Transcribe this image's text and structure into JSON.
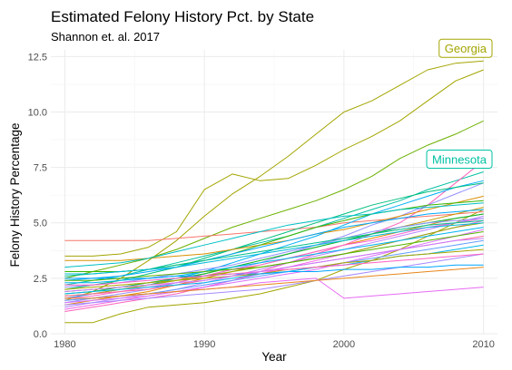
{
  "chart_data": {
    "type": "line",
    "title": "Estimated Felony History Pct. by State",
    "subtitle": "Shannon et. al. 2017",
    "xlabel": "Year",
    "ylabel": "Felony History Percentage",
    "xlim": [
      1979,
      2011
    ],
    "ylim": [
      0,
      12.8
    ],
    "x_ticks": [
      1980,
      1990,
      2000,
      2010
    ],
    "x_tick_labels": [
      "1980",
      "1990",
      "2000",
      "2010"
    ],
    "y_ticks": [
      0,
      2.5,
      5,
      7.5,
      10,
      12.5
    ],
    "y_tick_labels": [
      "0.0",
      "2.5",
      "5.0",
      "7.5",
      "10.0",
      "12.5"
    ],
    "grid": true,
    "legend": "none",
    "x": [
      1980,
      1982,
      1984,
      1986,
      1988,
      1990,
      1992,
      1994,
      1996,
      1998,
      2000,
      2002,
      2004,
      2006,
      2008,
      2010
    ],
    "series": [
      {
        "name": "Georgia",
        "color": "#A3A500",
        "values": [
          0.5,
          0.5,
          0.9,
          1.2,
          1.3,
          1.4,
          1.6,
          1.8,
          2.1,
          2.4,
          2.9,
          3.3,
          3.8,
          4.4,
          5.0,
          5.6
        ]
      },
      {
        "name": "Georgia",
        "color": "#A3A500",
        "values": [
          1.5,
          1.9,
          2.5,
          3.3,
          4.2,
          5.3,
          6.3,
          7.1,
          8.0,
          9.0,
          10.0,
          10.5,
          11.2,
          11.9,
          12.2,
          12.3
        ]
      },
      {
        "name": "",
        "color": "#A3A500",
        "values": [
          3.5,
          3.5,
          3.6,
          3.9,
          4.6,
          6.5,
          7.2,
          6.9,
          7.0,
          7.6,
          8.3,
          8.9,
          9.6,
          10.5,
          11.4,
          11.9
        ]
      },
      {
        "name": "",
        "color": "#6BB100",
        "values": [
          2.5,
          2.8,
          3.1,
          3.4,
          3.8,
          4.3,
          4.8,
          5.2,
          5.6,
          6.0,
          6.5,
          7.1,
          7.9,
          8.5,
          9.0,
          9.6
        ]
      },
      {
        "name": "Minnesota",
        "color": "#00C1A3",
        "values": [
          2.2,
          2.4,
          2.6,
          2.9,
          3.2,
          3.5,
          3.8,
          4.1,
          4.4,
          4.8,
          5.2,
          5.6,
          6.0,
          6.5,
          6.9,
          7.3
        ]
      },
      {
        "name": "",
        "color": "#F8766D",
        "values": [
          4.2,
          4.2,
          4.2,
          4.2,
          4.3,
          4.4,
          4.5,
          4.6,
          4.7,
          4.8,
          5.0,
          5.1,
          5.2,
          5.3,
          5.4,
          5.5
        ]
      },
      {
        "name": "",
        "color": "#E76BF3",
        "values": [
          1.5,
          1.6,
          1.7,
          1.8,
          1.9,
          2.0,
          2.1,
          2.3,
          2.4,
          2.5,
          1.6,
          1.7,
          1.8,
          1.9,
          2.0,
          2.1
        ]
      },
      {
        "name": "",
        "color": "#FF62BC",
        "values": [
          1.0,
          1.2,
          1.4,
          1.6,
          1.8,
          2.1,
          2.4,
          2.8,
          3.2,
          3.6,
          4.0,
          4.5,
          5.0,
          5.8,
          6.8,
          7.8
        ]
      },
      {
        "name": "",
        "color": "#00B0F6",
        "values": [
          1.6,
          1.8,
          2.0,
          2.2,
          2.5,
          2.8,
          3.2,
          3.6,
          4.0,
          4.4,
          4.9,
          5.4,
          5.8,
          6.2,
          6.6,
          6.9
        ]
      },
      {
        "name": "",
        "color": "#9590FF",
        "values": [
          1.4,
          1.6,
          1.8,
          2.0,
          2.3,
          2.6,
          2.9,
          3.2,
          3.6,
          4.0,
          4.4,
          4.9,
          5.3,
          5.8,
          6.3,
          6.8
        ]
      },
      {
        "name": "",
        "color": "#00BF7D",
        "values": [
          2.0,
          2.2,
          2.4,
          2.7,
          3.0,
          3.4,
          3.8,
          4.2,
          4.6,
          5.0,
          5.4,
          5.8,
          6.1,
          6.4,
          6.6,
          6.8
        ]
      },
      {
        "name": "",
        "color": "#D89000",
        "values": [
          3.3,
          3.3,
          3.3,
          3.4,
          3.5,
          3.6,
          3.8,
          4.0,
          4.2,
          4.5,
          4.7,
          5.0,
          5.3,
          5.6,
          5.9,
          6.2
        ]
      },
      {
        "name": "",
        "color": "#39B600",
        "values": [
          2.8,
          2.8,
          2.8,
          2.9,
          3.1,
          3.3,
          3.6,
          4.0,
          4.4,
          4.8,
          5.1,
          5.4,
          5.6,
          5.8,
          5.9,
          6.0
        ]
      },
      {
        "name": "",
        "color": "#00BFC4",
        "values": [
          3.0,
          3.1,
          3.2,
          3.4,
          3.7,
          4.0,
          4.3,
          4.6,
          4.9,
          5.1,
          5.3,
          5.4,
          5.6,
          5.7,
          5.8,
          5.9
        ]
      },
      {
        "name": "",
        "color": "#C49A00",
        "values": [
          1.7,
          1.8,
          2.0,
          2.2,
          2.4,
          2.7,
          3.0,
          3.3,
          3.6,
          3.9,
          4.2,
          4.5,
          4.8,
          5.1,
          5.4,
          5.7
        ]
      },
      {
        "name": "",
        "color": "#E58700",
        "values": [
          1.3,
          1.5,
          1.7,
          1.9,
          2.2,
          2.5,
          2.8,
          3.1,
          3.4,
          3.7,
          4.0,
          4.3,
          4.6,
          4.9,
          5.2,
          5.4
        ]
      },
      {
        "name": "",
        "color": "#00A9FF",
        "values": [
          2.4,
          2.5,
          2.6,
          2.8,
          3.0,
          3.3,
          3.6,
          3.9,
          4.2,
          4.5,
          4.8,
          5.0,
          5.2,
          5.4,
          5.5,
          5.6
        ]
      },
      {
        "name": "",
        "color": "#FD61D1",
        "values": [
          1.6,
          1.7,
          1.9,
          2.1,
          2.3,
          2.6,
          2.9,
          3.1,
          3.4,
          3.7,
          4.0,
          4.2,
          4.5,
          4.8,
          5.0,
          5.2
        ]
      },
      {
        "name": "",
        "color": "#B983FF",
        "values": [
          1.2,
          1.4,
          1.6,
          1.8,
          2.0,
          2.3,
          2.6,
          2.9,
          3.2,
          3.5,
          3.8,
          4.1,
          4.4,
          4.7,
          5.0,
          5.3
        ]
      },
      {
        "name": "",
        "color": "#00BA38",
        "values": [
          1.8,
          1.9,
          2.1,
          2.3,
          2.5,
          2.7,
          3.0,
          3.3,
          3.6,
          3.9,
          4.2,
          4.5,
          4.8,
          5.0,
          5.2,
          5.4
        ]
      },
      {
        "name": "",
        "color": "#8F91FF",
        "values": [
          2.1,
          2.2,
          2.3,
          2.5,
          2.7,
          2.9,
          3.1,
          3.4,
          3.7,
          4.0,
          4.3,
          4.6,
          4.8,
          5.0,
          5.1,
          5.2
        ]
      },
      {
        "name": "",
        "color": "#F564E3",
        "values": [
          1.1,
          1.3,
          1.5,
          1.7,
          1.9,
          2.1,
          2.4,
          2.7,
          3.0,
          3.3,
          3.6,
          3.9,
          4.2,
          4.5,
          4.8,
          5.1
        ]
      },
      {
        "name": "",
        "color": "#00C08B",
        "values": [
          2.6,
          2.7,
          2.8,
          2.9,
          3.1,
          3.3,
          3.5,
          3.7,
          3.9,
          4.1,
          4.3,
          4.5,
          4.7,
          4.9,
          5.0,
          5.1
        ]
      },
      {
        "name": "",
        "color": "#93AA00",
        "values": [
          1.9,
          2.0,
          2.1,
          2.2,
          2.4,
          2.6,
          2.8,
          3.0,
          3.2,
          3.4,
          3.6,
          3.9,
          4.2,
          4.5,
          4.8,
          5.0
        ]
      },
      {
        "name": "",
        "color": "#DB72FB",
        "values": [
          1.4,
          1.5,
          1.6,
          1.7,
          1.9,
          2.1,
          2.3,
          2.5,
          2.7,
          2.9,
          3.2,
          3.5,
          3.8,
          4.1,
          4.4,
          4.7
        ]
      },
      {
        "name": "",
        "color": "#00B4EF",
        "values": [
          2.3,
          2.3,
          2.4,
          2.5,
          2.6,
          2.8,
          3.0,
          3.2,
          3.4,
          3.6,
          3.8,
          4.0,
          4.2,
          4.4,
          4.6,
          4.8
        ]
      },
      {
        "name": "",
        "color": "#FF6A98",
        "values": [
          1.7,
          1.8,
          1.9,
          2.0,
          2.2,
          2.4,
          2.6,
          2.8,
          3.0,
          3.2,
          3.4,
          3.6,
          3.8,
          4.0,
          4.2,
          4.4
        ]
      },
      {
        "name": "",
        "color": "#619CFF",
        "values": [
          1.5,
          1.6,
          1.7,
          1.8,
          2.0,
          2.2,
          2.4,
          2.6,
          2.8,
          3.0,
          3.2,
          3.4,
          3.6,
          3.8,
          4.0,
          4.2
        ]
      },
      {
        "name": "",
        "color": "#00B6EB",
        "values": [
          1.8,
          1.9,
          2.0,
          2.1,
          2.2,
          2.3,
          2.5,
          2.7,
          2.8,
          3.0,
          3.1,
          3.3,
          3.5,
          3.6,
          3.8,
          4.0
        ]
      },
      {
        "name": "",
        "color": "#ABA300",
        "values": [
          2.0,
          2.1,
          2.2,
          2.3,
          2.4,
          2.5,
          2.6,
          2.7,
          2.9,
          3.0,
          3.2,
          3.3,
          3.5,
          3.6,
          3.7,
          3.8
        ]
      },
      {
        "name": "",
        "color": "#A58AFF",
        "values": [
          1.3,
          1.4,
          1.5,
          1.6,
          1.7,
          1.8,
          1.9,
          2.0,
          2.2,
          2.4,
          2.6,
          2.8,
          3.0,
          3.2,
          3.4,
          3.6
        ]
      },
      {
        "name": "",
        "color": "#00A5FF",
        "values": [
          2.5,
          2.5,
          2.5,
          2.5,
          2.6,
          2.6,
          2.7,
          2.7,
          2.8,
          2.8,
          2.9,
          2.9,
          3.0,
          3.0,
          3.1,
          3.1
        ]
      },
      {
        "name": "",
        "color": "#E7861B",
        "values": [
          1.6,
          1.6,
          1.7,
          1.8,
          1.9,
          2.0,
          2.1,
          2.2,
          2.3,
          2.4,
          2.5,
          2.6,
          2.7,
          2.8,
          2.9,
          3.0
        ]
      },
      {
        "name": "",
        "color": "#FF61C3",
        "values": [
          2.2,
          2.2,
          2.3,
          2.4,
          2.5,
          2.6,
          2.7,
          2.8,
          2.9,
          3.0,
          3.1,
          3.2,
          3.3,
          3.4,
          3.5,
          3.6
        ]
      },
      {
        "name": "",
        "color": "#53B400",
        "values": [
          2.4,
          2.4,
          2.5,
          2.6,
          2.7,
          2.8,
          2.9,
          3.0,
          3.2,
          3.4,
          3.6,
          3.8,
          4.0,
          4.2,
          4.4,
          4.6
        ]
      },
      {
        "name": "",
        "color": "#00BBDA",
        "values": [
          2.7,
          2.7,
          2.8,
          2.9,
          3.0,
          3.2,
          3.4,
          3.6,
          3.8,
          4.0,
          4.2,
          4.4,
          4.6,
          4.8,
          4.9,
          5.0
        ]
      },
      {
        "name": "",
        "color": "#C77CFF",
        "values": [
          1.9,
          2.0,
          2.1,
          2.2,
          2.3,
          2.4,
          2.6,
          2.8,
          3.0,
          3.2,
          3.4,
          3.6,
          3.8,
          4.0,
          4.2,
          4.3
        ]
      }
    ]
  }
}
